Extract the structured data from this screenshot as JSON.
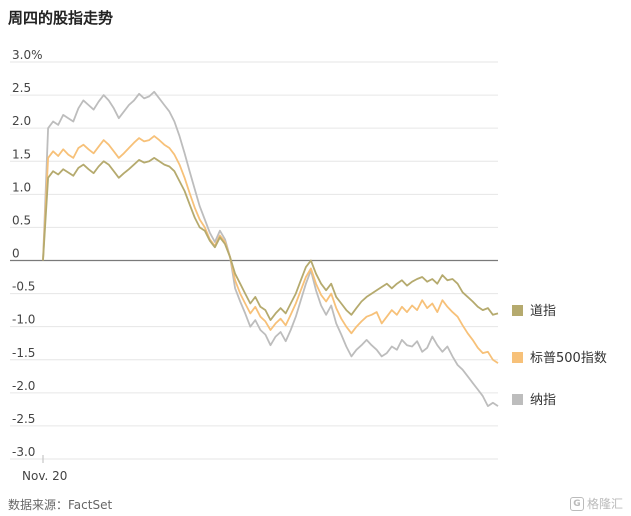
{
  "chart_data": {
    "type": "line",
    "title": "周四的股指走势",
    "source": "数据来源：FactSet",
    "xlabel": "",
    "ylabel": "",
    "x_tick_labels": [
      "Nov. 20"
    ],
    "y_ticks": [
      3.0,
      2.5,
      2.0,
      1.5,
      1.0,
      0.5,
      0,
      -0.5,
      -1.0,
      -1.5,
      -2.0,
      -2.5,
      -3.0
    ],
    "y_tick_labels": [
      "3.0%",
      "2.5",
      "2.0",
      "1.5",
      "1.0",
      "0.5",
      "0",
      "-0.5",
      "-1.0",
      "-1.5",
      "-2.0",
      "-2.5",
      "-3.0"
    ],
    "ylim": [
      -3.0,
      3.0
    ],
    "unit": "%",
    "grid": true,
    "legend_position": "right",
    "series": [
      {
        "name": "道指",
        "color": "#b5aa6e",
        "values": [
          0,
          1.25,
          1.35,
          1.3,
          1.38,
          1.33,
          1.28,
          1.4,
          1.45,
          1.38,
          1.32,
          1.42,
          1.5,
          1.45,
          1.35,
          1.25,
          1.32,
          1.38,
          1.45,
          1.52,
          1.48,
          1.5,
          1.55,
          1.5,
          1.45,
          1.42,
          1.35,
          1.2,
          1.05,
          0.85,
          0.65,
          0.5,
          0.45,
          0.3,
          0.2,
          0.35,
          0.25,
          0.05,
          -0.2,
          -0.35,
          -0.5,
          -0.65,
          -0.55,
          -0.7,
          -0.75,
          -0.9,
          -0.8,
          -0.72,
          -0.8,
          -0.65,
          -0.5,
          -0.3,
          -0.1,
          0.0,
          -0.2,
          -0.35,
          -0.45,
          -0.35,
          -0.55,
          -0.65,
          -0.75,
          -0.82,
          -0.72,
          -0.62,
          -0.55,
          -0.5,
          -0.45,
          -0.4,
          -0.35,
          -0.42,
          -0.35,
          -0.3,
          -0.38,
          -0.32,
          -0.28,
          -0.25,
          -0.32,
          -0.28,
          -0.35,
          -0.22,
          -0.3,
          -0.28,
          -0.35,
          -0.48,
          -0.55,
          -0.62,
          -0.7,
          -0.75,
          -0.72,
          -0.82,
          -0.8
        ]
      },
      {
        "name": "标普500指数",
        "color": "#f7c179",
        "values": [
          0,
          1.55,
          1.65,
          1.58,
          1.68,
          1.6,
          1.55,
          1.7,
          1.75,
          1.68,
          1.62,
          1.72,
          1.82,
          1.75,
          1.65,
          1.55,
          1.62,
          1.7,
          1.78,
          1.85,
          1.8,
          1.82,
          1.88,
          1.82,
          1.75,
          1.7,
          1.6,
          1.45,
          1.25,
          1.02,
          0.8,
          0.62,
          0.5,
          0.32,
          0.22,
          0.38,
          0.28,
          0.05,
          -0.3,
          -0.5,
          -0.65,
          -0.8,
          -0.7,
          -0.85,
          -0.92,
          -1.05,
          -0.95,
          -0.88,
          -0.98,
          -0.82,
          -0.65,
          -0.45,
          -0.25,
          -0.12,
          -0.35,
          -0.52,
          -0.62,
          -0.5,
          -0.72,
          -0.88,
          -1.0,
          -1.1,
          -1.0,
          -0.92,
          -0.85,
          -0.82,
          -0.78,
          -0.95,
          -0.85,
          -0.75,
          -0.82,
          -0.7,
          -0.78,
          -0.68,
          -0.75,
          -0.6,
          -0.72,
          -0.65,
          -0.78,
          -0.6,
          -0.7,
          -0.78,
          -0.85,
          -0.98,
          -1.1,
          -1.2,
          -1.32,
          -1.4,
          -1.38,
          -1.5,
          -1.55
        ]
      },
      {
        "name": "纳指",
        "color": "#bdbdbd",
        "values": [
          0,
          2.0,
          2.1,
          2.05,
          2.2,
          2.15,
          2.1,
          2.3,
          2.42,
          2.35,
          2.28,
          2.4,
          2.5,
          2.42,
          2.3,
          2.15,
          2.25,
          2.35,
          2.42,
          2.52,
          2.45,
          2.48,
          2.55,
          2.45,
          2.35,
          2.25,
          2.1,
          1.88,
          1.62,
          1.35,
          1.08,
          0.82,
          0.62,
          0.42,
          0.28,
          0.45,
          0.32,
          0.05,
          -0.42,
          -0.62,
          -0.8,
          -1.0,
          -0.9,
          -1.05,
          -1.12,
          -1.28,
          -1.15,
          -1.08,
          -1.22,
          -1.05,
          -0.85,
          -0.6,
          -0.35,
          -0.15,
          -0.45,
          -0.68,
          -0.82,
          -0.68,
          -0.95,
          -1.12,
          -1.3,
          -1.45,
          -1.35,
          -1.28,
          -1.2,
          -1.28,
          -1.35,
          -1.45,
          -1.4,
          -1.3,
          -1.35,
          -1.2,
          -1.28,
          -1.3,
          -1.22,
          -1.38,
          -1.32,
          -1.15,
          -1.28,
          -1.38,
          -1.3,
          -1.45,
          -1.58,
          -1.65,
          -1.75,
          -1.85,
          -1.95,
          -2.05,
          -2.2,
          -2.15,
          -2.2
        ]
      }
    ]
  },
  "watermark": {
    "icon_glyph": "G",
    "text": "格隆汇"
  }
}
